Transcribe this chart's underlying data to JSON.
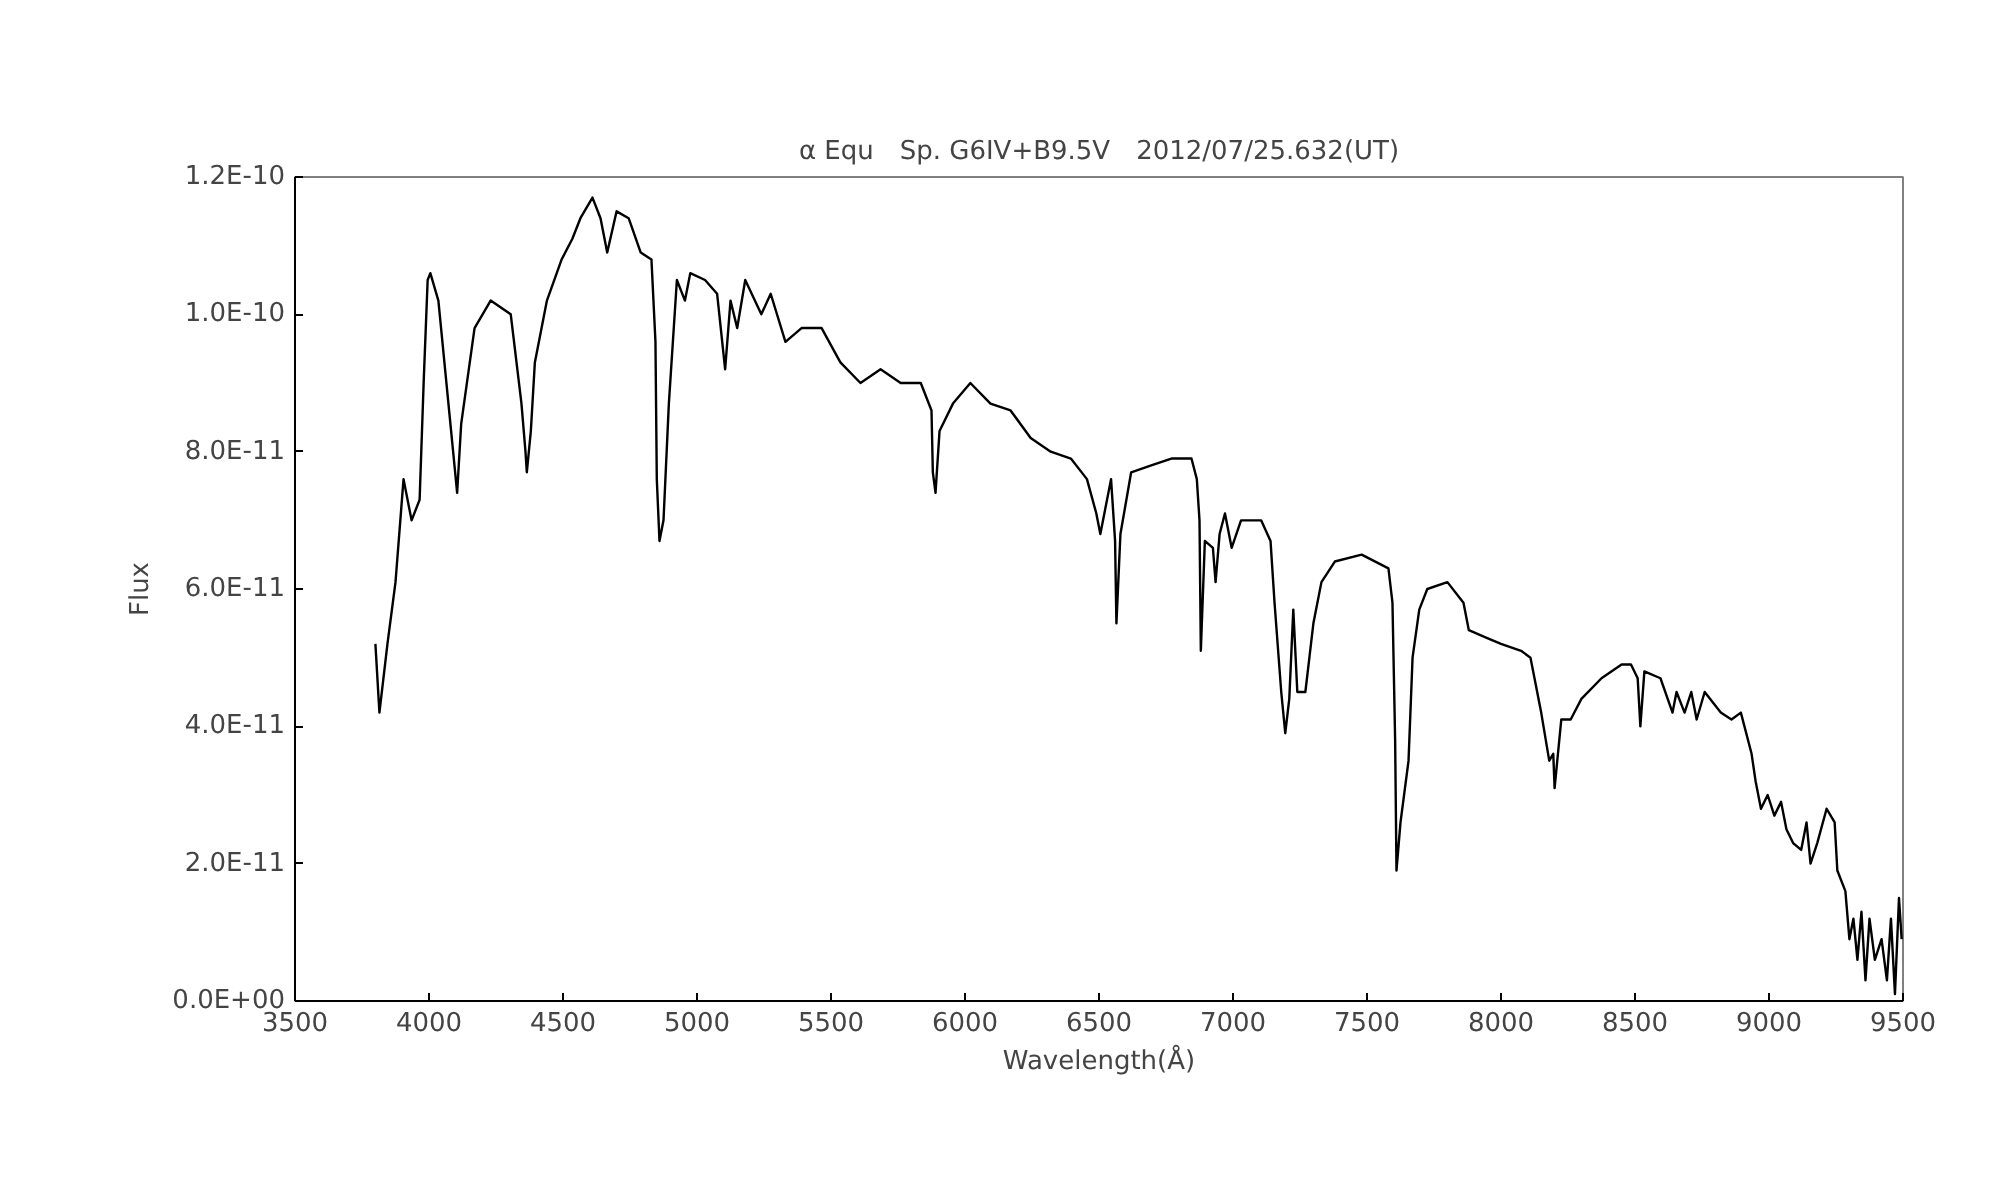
{
  "chart_data": {
    "type": "line",
    "title": "α Equ　Sp. G6IV+B9.5V　2012/07/25.632(UT)",
    "xlabel": "Wavelength(Å)",
    "ylabel": "Flux",
    "xlim": [
      3500,
      9500
    ],
    "xticks": [
      3500,
      4000,
      4500,
      5000,
      5500,
      6000,
      6500,
      7000,
      7500,
      8000,
      8500,
      9000,
      9500
    ],
    "ylim": [
      0,
      1.2e-10
    ],
    "yticks": [
      {
        "value": 0,
        "label": "0.0E+00"
      },
      {
        "value": 2e-11,
        "label": "2.0E-11"
      },
      {
        "value": 4e-11,
        "label": "4.0E-11"
      },
      {
        "value": 6e-11,
        "label": "6.0E-11"
      },
      {
        "value": 8e-11,
        "label": "8.0E-11"
      },
      {
        "value": 1e-10,
        "label": "1.0E-10"
      },
      {
        "value": 1.2e-10,
        "label": "1.2E-10"
      }
    ],
    "grid": false,
    "marker": "none",
    "line_style": "solid",
    "series": [
      {
        "color": "#000000",
        "x": [
          3800,
          3815,
          3845,
          3875,
          3905,
          3935,
          3965,
          3980,
          3995,
          4005,
          4035,
          4080,
          4105,
          4120,
          4170,
          4230,
          4305,
          4345,
          4360,
          4365,
          4380,
          4395,
          4440,
          4495,
          4535,
          4565,
          4610,
          4640,
          4665,
          4700,
          4745,
          4790,
          4830,
          4845,
          4850,
          4860,
          4875,
          4895,
          4925,
          4955,
          4975,
          5030,
          5075,
          5105,
          5125,
          5150,
          5180,
          5240,
          5275,
          5330,
          5390,
          5465,
          5535,
          5610,
          5685,
          5760,
          5835,
          5875,
          5880,
          5890,
          5905,
          5955,
          6020,
          6095,
          6170,
          6245,
          6320,
          6395,
          6455,
          6490,
          6505,
          6520,
          6545,
          6560,
          6565,
          6580,
          6620,
          6695,
          6770,
          6845,
          6865,
          6875,
          6880,
          6895,
          6925,
          6935,
          6950,
          6970,
          6995,
          7030,
          7105,
          7140,
          7155,
          7180,
          7195,
          7210,
          7225,
          7240,
          7270,
          7285,
          7300,
          7330,
          7380,
          7480,
          7580,
          7595,
          7605,
          7610,
          7625,
          7655,
          7670,
          7695,
          7725,
          7800,
          7860,
          7880,
          7940,
          8000,
          8075,
          8110,
          8125,
          8150,
          8180,
          8195,
          8200,
          8225,
          8260,
          8300,
          8375,
          8450,
          8485,
          8510,
          8520,
          8535,
          8595,
          8640,
          8655,
          8685,
          8710,
          8730,
          8760,
          8820,
          8860,
          8895,
          8935,
          8950,
          8970,
          8995,
          9020,
          9045,
          9065,
          9090,
          9120,
          9140,
          9155,
          9180,
          9215,
          9245,
          9255,
          9285,
          9300,
          9315,
          9330,
          9345,
          9360,
          9375,
          9395,
          9420,
          9440,
          9455,
          9470,
          9485,
          9495
        ],
        "values": [
          5.2e-11,
          4.2e-11,
          5.2e-11,
          6.1e-11,
          7.6e-11,
          7e-11,
          7.3e-11,
          9e-11,
          1.05e-10,
          1.06e-10,
          1.02e-10,
          8.4e-11,
          7.4e-11,
          8.4e-11,
          9.8e-11,
          1.02e-10,
          1e-10,
          8.7e-11,
          8e-11,
          7.7e-11,
          8.3e-11,
          9.3e-11,
          1.02e-10,
          1.08e-10,
          1.11e-10,
          1.14e-10,
          1.17e-10,
          1.14e-10,
          1.09e-10,
          1.15e-10,
          1.14e-10,
          1.09e-10,
          1.08e-10,
          9.6e-11,
          7.6e-11,
          6.7e-11,
          7e-11,
          8.7e-11,
          1.05e-10,
          1.02e-10,
          1.06e-10,
          1.05e-10,
          1.03e-10,
          9.2e-11,
          1.02e-10,
          9.8e-11,
          1.05e-10,
          1e-10,
          1.03e-10,
          9.6e-11,
          9.8e-11,
          9.8e-11,
          9.3e-11,
          9e-11,
          9.2e-11,
          9e-11,
          9e-11,
          8.6e-11,
          7.7e-11,
          7.4e-11,
          8.3e-11,
          8.7e-11,
          9e-11,
          8.7e-11,
          8.6e-11,
          8.2e-11,
          8e-11,
          7.9e-11,
          7.6e-11,
          7.1e-11,
          6.8e-11,
          7.1e-11,
          7.6e-11,
          6.7e-11,
          5.5e-11,
          6.8e-11,
          7.7e-11,
          7.8e-11,
          7.9e-11,
          7.9e-11,
          7.6e-11,
          7e-11,
          5.1e-11,
          6.7e-11,
          6.6e-11,
          6.1e-11,
          6.8e-11,
          7.1e-11,
          6.6e-11,
          7e-11,
          7e-11,
          6.7e-11,
          5.8e-11,
          4.5e-11,
          3.9e-11,
          4.4e-11,
          5.7e-11,
          4.5e-11,
          4.5e-11,
          5e-11,
          5.5e-11,
          6.1e-11,
          6.4e-11,
          6.5e-11,
          6.3e-11,
          5.8e-11,
          3.8e-11,
          1.9e-11,
          2.6e-11,
          3.5e-11,
          5e-11,
          5.7e-11,
          6e-11,
          6.1e-11,
          5.8e-11,
          5.4e-11,
          5.3e-11,
          5.2e-11,
          5.1e-11,
          5e-11,
          4.7e-11,
          4.2e-11,
          3.5e-11,
          3.6e-11,
          3.1e-11,
          4.1e-11,
          4.1e-11,
          4.4e-11,
          4.7e-11,
          4.9e-11,
          4.9e-11,
          4.7e-11,
          4e-11,
          4.8e-11,
          4.7e-11,
          4.2e-11,
          4.5e-11,
          4.2e-11,
          4.5e-11,
          4.1e-11,
          4.5e-11,
          4.2e-11,
          4.1e-11,
          4.2e-11,
          3.6e-11,
          3.2e-11,
          2.8e-11,
          3e-11,
          2.7e-11,
          2.9e-11,
          2.5e-11,
          2.3e-11,
          2.2e-11,
          2.6e-11,
          2e-11,
          2.3e-11,
          2.8e-11,
          2.6e-11,
          1.9e-11,
          1.6e-11,
          9e-12,
          1.2e-11,
          6e-12,
          1.3e-11,
          3e-12,
          1.2e-11,
          6e-12,
          9e-12,
          3e-12,
          1.2e-11,
          1e-12,
          1.5e-11,
          9e-12
        ]
      }
    ]
  }
}
